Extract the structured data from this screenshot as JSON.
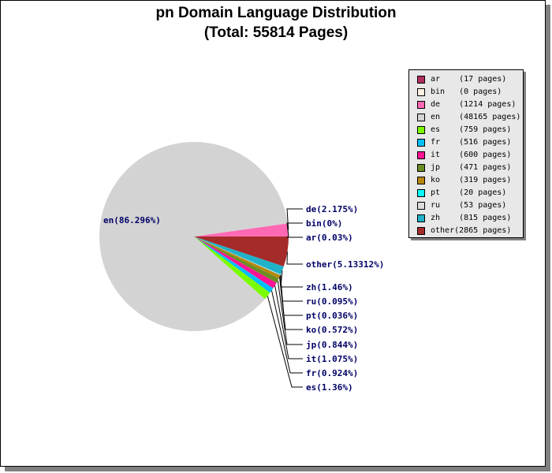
{
  "chart_data": {
    "type": "pie",
    "title": "pn Domain Language Distribution",
    "subtitle": "(Total: 55814 Pages)",
    "legend_position": "top-right",
    "slices": [
      {
        "key": "ar",
        "legend": "ar    (17 pages)",
        "label": "ar(0.03%)",
        "pages": 17,
        "percent": 0.03,
        "color": "#b03060"
      },
      {
        "key": "bin",
        "legend": "bin   (0 pages)",
        "label": "bin(0%)",
        "pages": 0,
        "percent": 0,
        "color": "#fff0e0"
      },
      {
        "key": "de",
        "legend": "de    (1214 pages)",
        "label": "de(2.175%)",
        "pages": 1214,
        "percent": 2.175,
        "color": "#ff69b4"
      },
      {
        "key": "en",
        "legend": "en    (48165 pages)",
        "label": "en(86.296%)",
        "pages": 48165,
        "percent": 86.296,
        "color": "#d3d3d3"
      },
      {
        "key": "es",
        "legend": "es    (759 pages)",
        "label": "es(1.36%)",
        "pages": 759,
        "percent": 1.36,
        "color": "#7cfc00"
      },
      {
        "key": "fr",
        "legend": "fr    (516 pages)",
        "label": "fr(0.924%)",
        "pages": 516,
        "percent": 0.924,
        "color": "#00bfff"
      },
      {
        "key": "it",
        "legend": "it    (600 pages)",
        "label": "it(1.075%)",
        "pages": 600,
        "percent": 1.075,
        "color": "#ff1493"
      },
      {
        "key": "jp",
        "legend": "jp    (471 pages)",
        "label": "jp(0.844%)",
        "pages": 471,
        "percent": 0.844,
        "color": "#6b8e23"
      },
      {
        "key": "ko",
        "legend": "ko    (319 pages)",
        "label": "ko(0.572%)",
        "pages": 319,
        "percent": 0.572,
        "color": "#b8860b"
      },
      {
        "key": "pt",
        "legend": "pt    (20 pages)",
        "label": "pt(0.036%)",
        "pages": 20,
        "percent": 0.036,
        "color": "#00ffff"
      },
      {
        "key": "ru",
        "legend": "ru    (53 pages)",
        "label": "ru(0.095%)",
        "pages": 53,
        "percent": 0.095,
        "color": "#dcdcdc"
      },
      {
        "key": "zh",
        "legend": "zh    (815 pages)",
        "label": "zh(1.46%)",
        "pages": 815,
        "percent": 1.46,
        "color": "#20b2c8"
      },
      {
        "key": "other",
        "legend": "other(2865 pages)",
        "label": "other(5.13312%)",
        "pages": 2865,
        "percent": 5.13312,
        "color": "#a52a2a"
      }
    ]
  }
}
